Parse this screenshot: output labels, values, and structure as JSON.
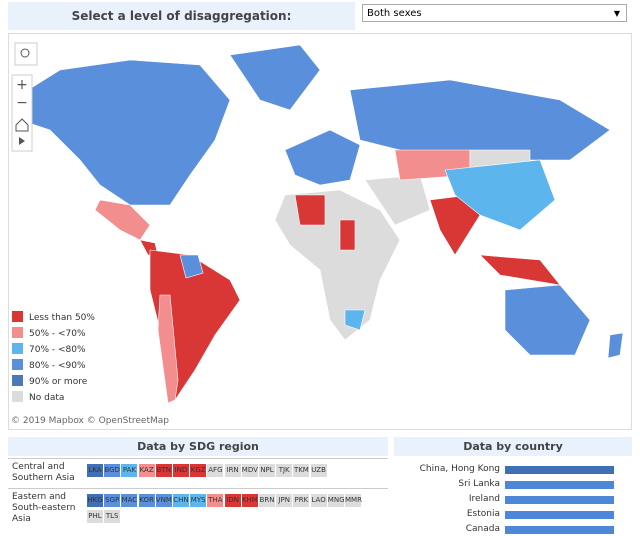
{
  "header": {
    "prompt": "Select a level of disaggregation:",
    "dropdown": "Both sexes"
  },
  "map": {
    "legend": [
      {
        "label": "Less than 50%",
        "color": "#d93636"
      },
      {
        "label": "50% - <70%",
        "color": "#f28e8e"
      },
      {
        "label": "70% - <80%",
        "color": "#5db5ee"
      },
      {
        "label": "80% - <90%",
        "color": "#5a8fdc"
      },
      {
        "label": "90% or more",
        "color": "#4a78bb"
      },
      {
        "label": "No data",
        "color": "#dcdcdc"
      }
    ],
    "attribution": "© 2019 Mapbox © OpenStreetMap"
  },
  "region_panel": {
    "title": "Data by SDG region",
    "regions": [
      {
        "name": "Central and Southern Asia",
        "codes": [
          "LKA",
          "BGD",
          "PAK",
          "KAZ",
          "BTN",
          "IND",
          "KGZ",
          "AFG",
          "IRN",
          "MDV",
          "NPL",
          "TJK",
          "TKM",
          "UZB"
        ],
        "colors": [
          "#3f6fb5",
          "#5a8fdc",
          "#5db5ee",
          "#f28e8e",
          "#d93636",
          "#d93636",
          "#d93636",
          "#dcdcdc",
          "#dcdcdc",
          "#dcdcdc",
          "#dcdcdc",
          "#dcdcdc",
          "#dcdcdc",
          "#dcdcdc"
        ]
      },
      {
        "name": "Eastern and South-eastern Asia",
        "codes": [
          "HKG",
          "SGP",
          "MAC",
          "KOR",
          "VNM",
          "CHN",
          "MYS",
          "THA",
          "IDN",
          "KHM",
          "BRN",
          "JPN",
          "PRK",
          "LAO",
          "MNG",
          "MMR",
          "PHL",
          "TLS"
        ],
        "colors": [
          "#3f6fb5",
          "#5a8fdc",
          "#5a8fdc",
          "#5a8fdc",
          "#5a8fdc",
          "#5db5ee",
          "#5db5ee",
          "#f28e8e",
          "#d93636",
          "#d93636",
          "#dcdcdc",
          "#dcdcdc",
          "#dcdcdc",
          "#dcdcdc",
          "#dcdcdc",
          "#dcdcdc",
          "#dcdcdc",
          "#dcdcdc"
        ]
      }
    ]
  },
  "country_panel": {
    "title": "Data by country",
    "categories": [
      "China, Hong Kong",
      "Sri Lanka",
      "Ireland",
      "Estonia",
      "Canada"
    ],
    "values": [
      97,
      97,
      97,
      97,
      97
    ],
    "colors": [
      "#3f6fb5",
      "#4e86d8",
      "#4e86d8",
      "#4e86d8",
      "#4e86d8"
    ]
  }
}
